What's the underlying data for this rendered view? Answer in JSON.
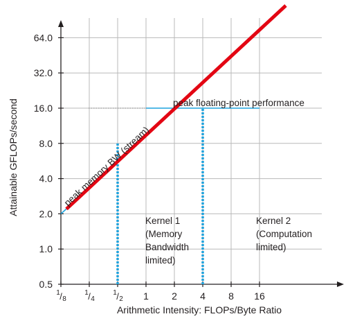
{
  "chart_data": {
    "type": "line",
    "title": "",
    "xlabel": "Arithmetic Intensity: FLOPs/Byte Ratio",
    "ylabel": "Attainable GFLOPs/second",
    "x_scale": "log2",
    "y_scale": "log2",
    "xlim": [
      0.125,
      16
    ],
    "ylim": [
      0.5,
      64
    ],
    "grid": true,
    "x_ticks": [
      {
        "value": 0.125,
        "num": "1",
        "den": "8"
      },
      {
        "value": 0.25,
        "num": "1",
        "den": "4"
      },
      {
        "value": 0.5,
        "num": "1",
        "den": "2"
      },
      {
        "value": 1,
        "label": "1"
      },
      {
        "value": 2,
        "label": "2"
      },
      {
        "value": 4,
        "label": "4"
      },
      {
        "value": 8,
        "label": "8"
      },
      {
        "value": 16,
        "label": "16"
      }
    ],
    "y_ticks": [
      {
        "value": 0.5,
        "label": "0.5"
      },
      {
        "value": 1,
        "label": "1.0"
      },
      {
        "value": 2,
        "label": "2.0"
      },
      {
        "value": 4,
        "label": "4.0"
      },
      {
        "value": 8,
        "label": "8.0"
      },
      {
        "value": 16,
        "label": "16.0"
      },
      {
        "value": 32,
        "label": "32.0"
      },
      {
        "value": 64,
        "label": "64.0"
      }
    ],
    "series": [
      {
        "name": "peak memory BW (stream)",
        "color": "#e30613",
        "x": [
          0.125,
          0.25,
          0.5,
          1,
          2,
          4,
          8
        ],
        "y": [
          2,
          4,
          8,
          16,
          32,
          64,
          128
        ]
      },
      {
        "name": "peak floating-point performance",
        "color": "#1fa3dd",
        "x": [
          1,
          16
        ],
        "y": [
          16,
          16
        ]
      }
    ],
    "kernels": [
      {
        "x": 0.5,
        "y_top": 8,
        "color": "#1fa3dd",
        "lines": [
          "Kernel 1",
          "(Memory",
          "Bandwidth",
          "limited)"
        ]
      },
      {
        "x": 4,
        "y_top": 16,
        "color": "#1fa3dd",
        "lines": [
          "Kernel 2",
          "(Computation",
          "limited)"
        ]
      }
    ]
  }
}
